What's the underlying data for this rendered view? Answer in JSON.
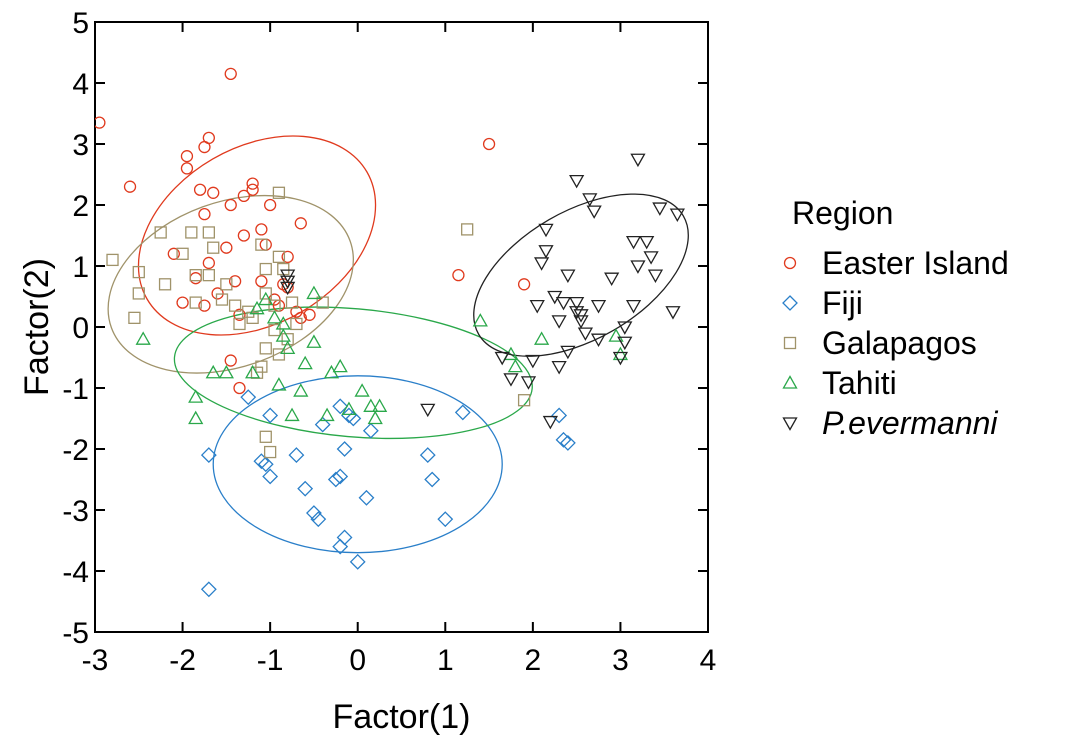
{
  "chart_data": {
    "type": "scatter",
    "xlabel": "Factor(1)",
    "ylabel": "Factor(2)",
    "xlim": [
      -3,
      4
    ],
    "ylim": [
      -5,
      5
    ],
    "x_ticks": [
      -3,
      -2,
      -1,
      0,
      1,
      2,
      3,
      4
    ],
    "y_ticks": [
      -5,
      -4,
      -3,
      -2,
      -1,
      0,
      1,
      2,
      3,
      4,
      5
    ],
    "grid": false,
    "legend": {
      "title": "Region",
      "position": "right"
    },
    "series": [
      {
        "name": "Easter Island",
        "marker": "circle",
        "color": "#e03a1e",
        "ellipse": {
          "cx": -1.15,
          "cy": 1.5,
          "rx": 1.45,
          "ry": 1.45,
          "angle": -30
        },
        "points": [
          [
            -2.95,
            3.35
          ],
          [
            -1.45,
            4.15
          ],
          [
            -2.6,
            2.3
          ],
          [
            -1.7,
            3.1
          ],
          [
            -1.75,
            2.95
          ],
          [
            -1.95,
            2.8
          ],
          [
            -1.95,
            2.6
          ],
          [
            -1.8,
            2.25
          ],
          [
            -1.2,
            2.35
          ],
          [
            -1.2,
            2.25
          ],
          [
            -1.3,
            2.15
          ],
          [
            -1.65,
            2.2
          ],
          [
            -1.45,
            2.0
          ],
          [
            -1.0,
            2.0
          ],
          [
            -1.75,
            1.85
          ],
          [
            -0.65,
            1.7
          ],
          [
            -1.1,
            1.6
          ],
          [
            -1.3,
            1.5
          ],
          [
            -1.5,
            1.3
          ],
          [
            -1.05,
            1.35
          ],
          [
            -2.1,
            1.2
          ],
          [
            -1.7,
            1.05
          ],
          [
            -0.8,
            1.15
          ],
          [
            -1.85,
            0.8
          ],
          [
            -1.4,
            0.75
          ],
          [
            -1.1,
            0.75
          ],
          [
            -1.6,
            0.55
          ],
          [
            -0.85,
            0.7
          ],
          [
            -0.95,
            0.45
          ],
          [
            -2.0,
            0.4
          ],
          [
            -1.75,
            0.35
          ],
          [
            -0.9,
            0.35
          ],
          [
            -0.7,
            0.25
          ],
          [
            -0.65,
            0.15
          ],
          [
            -0.55,
            0.2
          ],
          [
            -1.35,
            0.2
          ],
          [
            -1.45,
            -0.55
          ],
          [
            -1.35,
            -1.0
          ],
          [
            -0.8,
            0.65
          ],
          [
            1.5,
            3.0
          ],
          [
            1.15,
            0.85
          ],
          [
            1.9,
            0.7
          ]
        ]
      },
      {
        "name": "Fiji",
        "marker": "diamond",
        "color": "#2a7fc9",
        "ellipse": {
          "cx": 0.0,
          "cy": -2.25,
          "rx": 1.65,
          "ry": 1.45,
          "angle": 0
        },
        "points": [
          [
            -1.7,
            -2.1
          ],
          [
            -1.7,
            -4.3
          ],
          [
            -1.25,
            -1.15
          ],
          [
            -1.1,
            -2.2
          ],
          [
            -1.05,
            -2.25
          ],
          [
            -1.0,
            -2.45
          ],
          [
            -1.0,
            -1.45
          ],
          [
            -0.7,
            -2.1
          ],
          [
            -0.6,
            -2.65
          ],
          [
            -0.5,
            -3.05
          ],
          [
            -0.45,
            -3.15
          ],
          [
            -0.4,
            -1.6
          ],
          [
            -0.25,
            -2.5
          ],
          [
            -0.2,
            -2.45
          ],
          [
            -0.2,
            -1.3
          ],
          [
            -0.15,
            -2.0
          ],
          [
            -0.1,
            -1.45
          ],
          [
            -0.15,
            -3.45
          ],
          [
            -0.2,
            -3.6
          ],
          [
            -0.05,
            -1.5
          ],
          [
            0.0,
            -3.85
          ],
          [
            0.1,
            -2.8
          ],
          [
            0.15,
            -1.7
          ],
          [
            0.8,
            -2.1
          ],
          [
            0.85,
            -2.5
          ],
          [
            1.0,
            -3.15
          ],
          [
            1.2,
            -1.4
          ],
          [
            2.3,
            -1.45
          ],
          [
            2.35,
            -1.85
          ],
          [
            2.4,
            -1.9
          ]
        ]
      },
      {
        "name": "Galapagos",
        "marker": "square",
        "color": "#a0936a",
        "ellipse": {
          "cx": -1.45,
          "cy": 0.7,
          "rx": 1.45,
          "ry": 1.35,
          "angle": -20
        },
        "points": [
          [
            -2.8,
            1.1
          ],
          [
            -2.5,
            0.9
          ],
          [
            -2.5,
            0.55
          ],
          [
            -2.55,
            0.15
          ],
          [
            -2.25,
            1.55
          ],
          [
            -2.2,
            0.7
          ],
          [
            -2.0,
            1.2
          ],
          [
            -1.9,
            1.55
          ],
          [
            -1.85,
            0.85
          ],
          [
            -1.85,
            0.4
          ],
          [
            -1.7,
            1.55
          ],
          [
            -1.65,
            1.3
          ],
          [
            -1.7,
            0.85
          ],
          [
            -1.55,
            0.45
          ],
          [
            -1.5,
            0.7
          ],
          [
            -1.4,
            0.35
          ],
          [
            -1.35,
            0.05
          ],
          [
            -1.25,
            0.25
          ],
          [
            -1.2,
            0.15
          ],
          [
            -1.1,
            1.35
          ],
          [
            -1.05,
            0.95
          ],
          [
            -1.05,
            0.55
          ],
          [
            -0.95,
            0.35
          ],
          [
            -0.9,
            -0.45
          ],
          [
            -0.9,
            1.15
          ],
          [
            -0.85,
            0.95
          ],
          [
            -0.75,
            0.4
          ],
          [
            -0.7,
            0.05
          ],
          [
            -0.95,
            -0.05
          ],
          [
            -1.05,
            -0.35
          ],
          [
            -1.1,
            -0.65
          ],
          [
            -1.15,
            -0.75
          ],
          [
            -1.05,
            -1.8
          ],
          [
            -1.0,
            -2.05
          ],
          [
            -0.9,
            2.2
          ],
          [
            -0.4,
            0.4
          ],
          [
            1.25,
            1.6
          ],
          [
            1.9,
            -1.2
          ],
          [
            -0.8,
            -0.2
          ]
        ]
      },
      {
        "name": "Tahiti",
        "marker": "triangle-up",
        "color": "#2aa84a",
        "ellipse": {
          "cx": -0.05,
          "cy": -0.75,
          "rx": 2.05,
          "ry": 1.05,
          "angle": 5
        },
        "points": [
          [
            -2.45,
            -0.2
          ],
          [
            -1.85,
            -1.15
          ],
          [
            -1.85,
            -1.5
          ],
          [
            -1.65,
            -0.75
          ],
          [
            -1.5,
            -0.75
          ],
          [
            -1.2,
            -0.75
          ],
          [
            -1.15,
            0.3
          ],
          [
            -1.05,
            0.45
          ],
          [
            -0.95,
            0.15
          ],
          [
            -0.9,
            -0.95
          ],
          [
            -0.85,
            -0.15
          ],
          [
            -0.85,
            0.05
          ],
          [
            -0.8,
            -0.35
          ],
          [
            -0.75,
            -1.45
          ],
          [
            -0.65,
            -1.05
          ],
          [
            -0.6,
            -0.6
          ],
          [
            -0.5,
            0.55
          ],
          [
            -0.5,
            -0.25
          ],
          [
            -0.35,
            -1.45
          ],
          [
            -0.3,
            -0.75
          ],
          [
            -0.2,
            -0.65
          ],
          [
            -0.1,
            -1.35
          ],
          [
            0.05,
            -1.05
          ],
          [
            0.15,
            -1.3
          ],
          [
            0.2,
            -1.5
          ],
          [
            0.25,
            -1.3
          ],
          [
            1.4,
            0.1
          ],
          [
            1.75,
            -0.45
          ],
          [
            1.8,
            -0.65
          ],
          [
            2.1,
            -0.2
          ],
          [
            2.95,
            -0.15
          ],
          [
            3.0,
            -0.45
          ]
        ]
      },
      {
        "name": "P.evermanni",
        "marker": "triangle-down",
        "color": "#222222",
        "ellipse": {
          "cx": 2.55,
          "cy": 0.85,
          "rx": 1.35,
          "ry": 1.05,
          "angle": -30
        },
        "points": [
          [
            -0.8,
            0.85
          ],
          [
            -0.8,
            0.75
          ],
          [
            -0.8,
            0.65
          ],
          [
            0.8,
            -1.35
          ],
          [
            1.65,
            -0.5
          ],
          [
            1.75,
            -0.85
          ],
          [
            1.95,
            -0.9
          ],
          [
            2.0,
            -0.55
          ],
          [
            2.05,
            0.35
          ],
          [
            2.1,
            1.05
          ],
          [
            2.15,
            1.25
          ],
          [
            2.15,
            1.6
          ],
          [
            2.2,
            -1.55
          ],
          [
            2.25,
            0.5
          ],
          [
            2.3,
            -0.65
          ],
          [
            2.3,
            0.1
          ],
          [
            2.35,
            0.4
          ],
          [
            2.4,
            -0.4
          ],
          [
            2.4,
            0.85
          ],
          [
            2.5,
            0.4
          ],
          [
            2.5,
            0.25
          ],
          [
            2.5,
            2.4
          ],
          [
            2.55,
            0.2
          ],
          [
            2.55,
            0.1
          ],
          [
            2.6,
            -0.1
          ],
          [
            2.65,
            2.1
          ],
          [
            2.7,
            1.9
          ],
          [
            2.75,
            0.35
          ],
          [
            2.75,
            -0.2
          ],
          [
            2.9,
            0.8
          ],
          [
            3.0,
            -0.5
          ],
          [
            3.05,
            -0.25
          ],
          [
            3.05,
            0.0
          ],
          [
            3.15,
            1.4
          ],
          [
            3.15,
            0.35
          ],
          [
            3.2,
            2.75
          ],
          [
            3.2,
            1.0
          ],
          [
            3.3,
            1.4
          ],
          [
            3.35,
            1.15
          ],
          [
            3.4,
            0.85
          ],
          [
            3.45,
            1.95
          ],
          [
            3.6,
            0.25
          ],
          [
            3.65,
            1.85
          ]
        ]
      }
    ]
  }
}
